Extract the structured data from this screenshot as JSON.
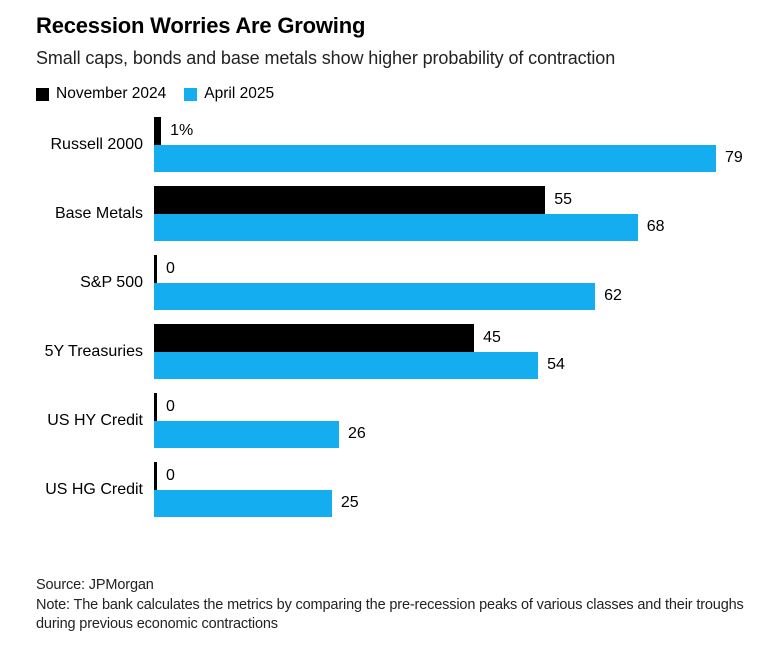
{
  "header": {
    "title": "Recession Worries Are Growing",
    "subtitle": "Small caps, bonds and base metals show higher probability of contraction"
  },
  "legend": [
    {
      "label": "November 2024",
      "color": "#000000"
    },
    {
      "label": "April 2025",
      "color": "#14AEF0"
    }
  ],
  "chart_data": {
    "type": "bar",
    "orientation": "horizontal",
    "title": "Recession Worries Are Growing",
    "subtitle": "Small caps, bonds and base metals show higher probability of contraction",
    "categories": [
      "Russell 2000",
      "Base Metals",
      "S&P 500",
      "5Y Treasuries",
      "US HY Credit",
      "US HG Credit"
    ],
    "series": [
      {
        "name": "November 2024",
        "color": "#000000",
        "values": [
          1,
          55,
          0,
          45,
          0,
          0
        ],
        "value_labels": [
          "1%",
          "55",
          "0",
          "45",
          "0",
          "0"
        ]
      },
      {
        "name": "April 2025",
        "color": "#14AEF0",
        "values": [
          79,
          68,
          62,
          54,
          26,
          25
        ],
        "value_labels": [
          "79",
          "68",
          "62",
          "54",
          "26",
          "25"
        ]
      }
    ],
    "xlim": [
      0,
      79
    ],
    "grid": false,
    "legend_position": "top-left",
    "zero_axis_tick": true
  },
  "footer": {
    "source": "Source: JPMorgan",
    "note": "Note: The bank calculates the metrics by comparing the pre-recession peaks of various classes and their troughs during previous economic contractions"
  }
}
